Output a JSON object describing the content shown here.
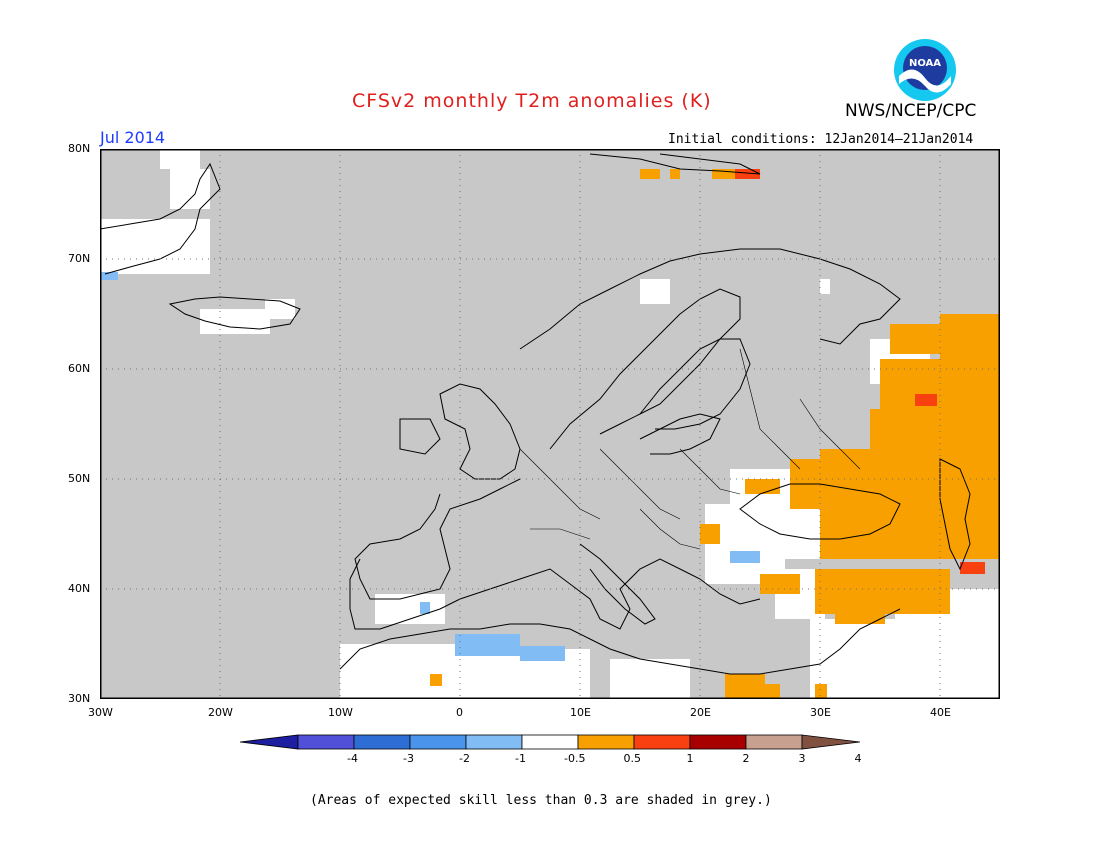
{
  "title": "CFSv2 monthly T2m anomalies (K)",
  "organization": "NWS/NCEP/CPC",
  "logo_text": "NOAA",
  "month": "Jul 2014",
  "initial_conditions": "Initial conditions: 12Jan2014–21Jan2014",
  "lat_labels": [
    "80N",
    "70N",
    "60N",
    "50N",
    "40N",
    "30N"
  ],
  "lon_labels": [
    "30W",
    "20W",
    "10W",
    "0",
    "10E",
    "20E",
    "30E",
    "40E"
  ],
  "colorbar": {
    "labels": [
      "-4",
      "-3",
      "-2",
      "-1",
      "-0.5",
      "0.5",
      "1",
      "2",
      "3",
      "4"
    ],
    "colors": [
      "#1e1ea0",
      "#5050d8",
      "#2e6ed4",
      "#4a94ec",
      "#82bcf4",
      "#ffffff",
      "#f8a000",
      "#f84010",
      "#a80000",
      "#c8a090",
      "#805040"
    ]
  },
  "note": "(Areas of expected skill less than 0.3 are shaded in grey.)",
  "colors": {
    "skill_grey": "#c8c8c8",
    "positive_0_5_1": "#f8a000",
    "positive_1_2": "#f84010",
    "negative_0_5_1": "#82bcf4",
    "neutral": "#ffffff"
  }
}
